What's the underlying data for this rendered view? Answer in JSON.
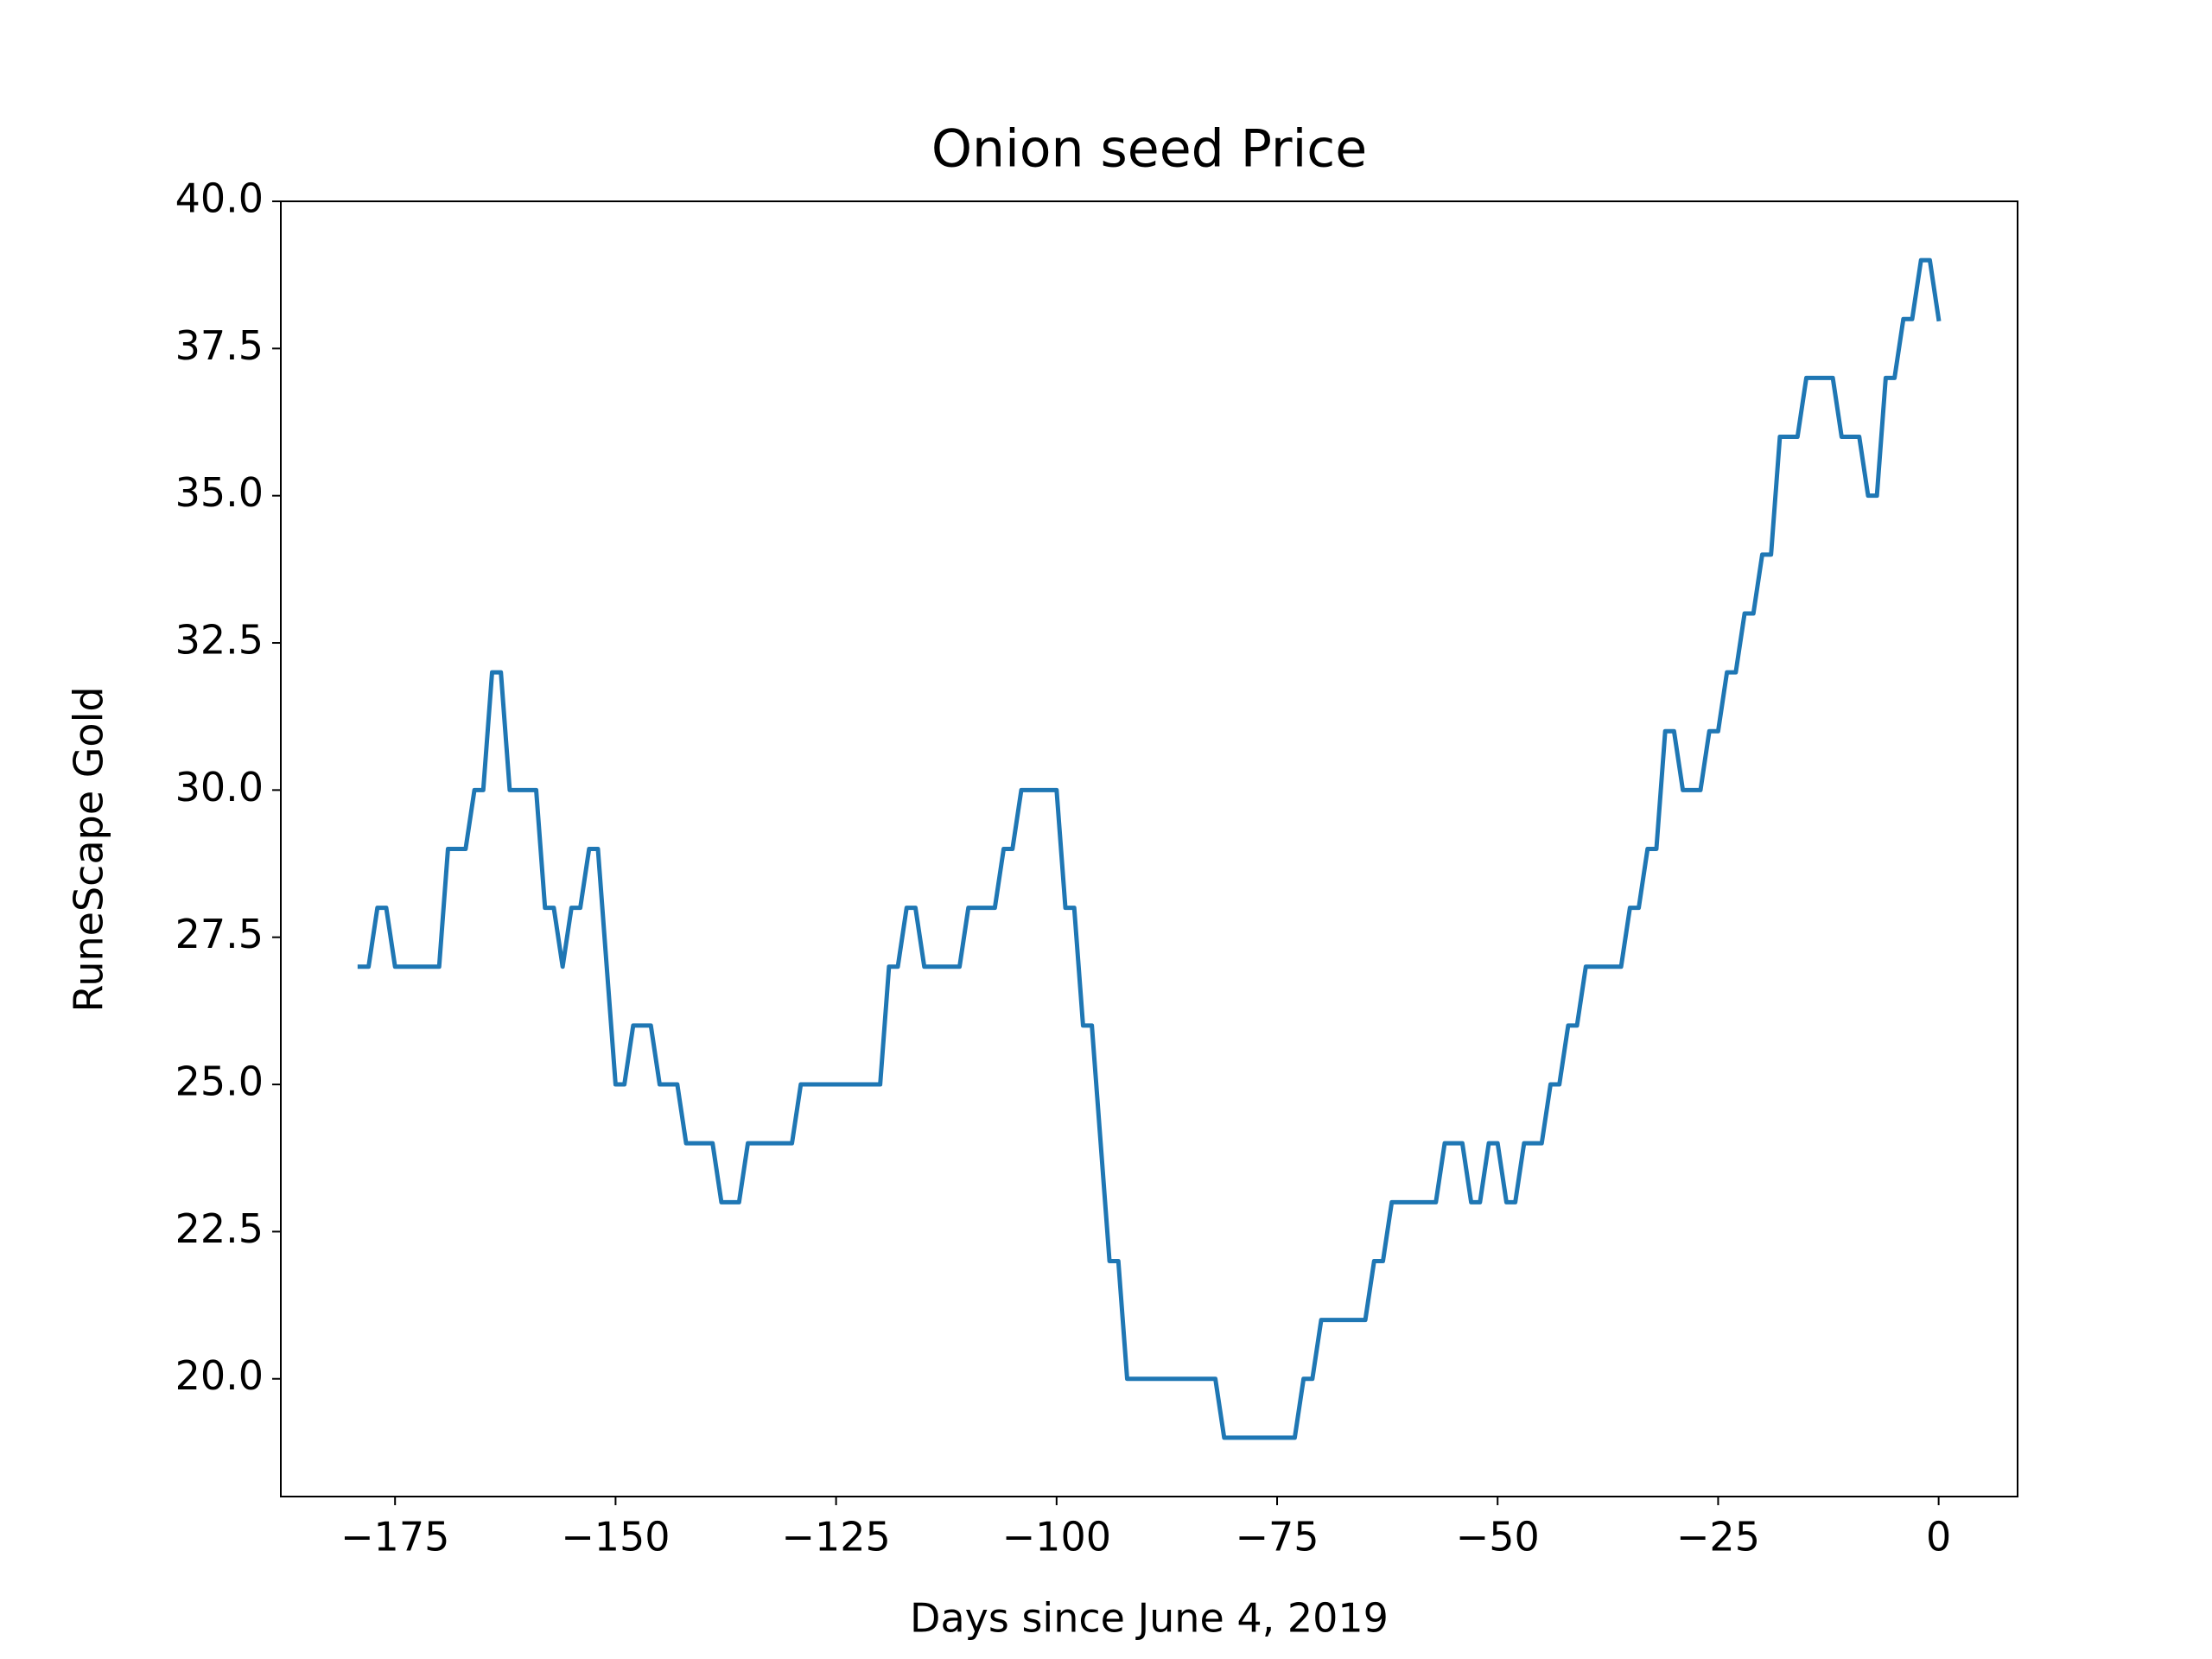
{
  "chart_data": {
    "type": "line",
    "title": "Onion seed Price",
    "xlabel": "Days since June 4, 2019",
    "ylabel": "RuneScape Gold",
    "color": "#1f77b4",
    "x": [
      -179,
      -178,
      -177,
      -176,
      -175,
      -174,
      -173,
      -172,
      -171,
      -170,
      -169,
      -168,
      -167,
      -166,
      -165,
      -164,
      -163,
      -162,
      -161,
      -160,
      -159,
      -158,
      -157,
      -156,
      -155,
      -154,
      -153,
      -152,
      -151,
      -150,
      -149,
      -148,
      -147,
      -146,
      -145,
      -144,
      -143,
      -142,
      -141,
      -140,
      -139,
      -138,
      -137,
      -136,
      -135,
      -134,
      -133,
      -132,
      -131,
      -130,
      -129,
      -128,
      -127,
      -126,
      -125,
      -124,
      -123,
      -122,
      -121,
      -120,
      -119,
      -118,
      -117,
      -116,
      -115,
      -114,
      -113,
      -112,
      -111,
      -110,
      -109,
      -108,
      -107,
      -106,
      -105,
      -104,
      -103,
      -102,
      -101,
      -100,
      -99,
      -98,
      -97,
      -96,
      -95,
      -94,
      -93,
      -92,
      -91,
      -90,
      -89,
      -88,
      -87,
      -86,
      -85,
      -84,
      -83,
      -82,
      -81,
      -80,
      -79,
      -78,
      -77,
      -76,
      -75,
      -74,
      -73,
      -72,
      -71,
      -70,
      -69,
      -68,
      -67,
      -66,
      -65,
      -64,
      -63,
      -62,
      -61,
      -60,
      -59,
      -58,
      -57,
      -56,
      -55,
      -54,
      -53,
      -52,
      -51,
      -50,
      -49,
      -48,
      -47,
      -46,
      -45,
      -44,
      -43,
      -42,
      -41,
      -40,
      -39,
      -38,
      -37,
      -36,
      -35,
      -34,
      -33,
      -32,
      -31,
      -30,
      -29,
      -28,
      -27,
      -26,
      -25,
      -24,
      -23,
      -22,
      -21,
      -20,
      -19,
      -18,
      -17,
      -16,
      -15,
      -14,
      -13,
      -12,
      -11,
      -10,
      -9,
      -8,
      -7,
      -6,
      -5,
      -4,
      -3,
      -2,
      -1,
      0
    ],
    "values": [
      27,
      27,
      28,
      28,
      27,
      27,
      27,
      27,
      27,
      27,
      29,
      29,
      29,
      30,
      30,
      32,
      32,
      30,
      30,
      30,
      30,
      28,
      28,
      27,
      28,
      28,
      29,
      29,
      27,
      25,
      25,
      26,
      26,
      26,
      25,
      25,
      25,
      24,
      24,
      24,
      24,
      23,
      23,
      23,
      24,
      24,
      24,
      24,
      24,
      24,
      25,
      25,
      25,
      25,
      25,
      25,
      25,
      25,
      25,
      25,
      27,
      27,
      28,
      28,
      27,
      27,
      27,
      27,
      27,
      28,
      28,
      28,
      28,
      29,
      29,
      30,
      30,
      30,
      30,
      30,
      28,
      28,
      26,
      26,
      24,
      22,
      22,
      20,
      20,
      20,
      20,
      20,
      20,
      20,
      20,
      20,
      20,
      20,
      19,
      19,
      19,
      19,
      19,
      19,
      19,
      19,
      19,
      20,
      20,
      21,
      21,
      21,
      21,
      21,
      21,
      22,
      22,
      23,
      23,
      23,
      23,
      23,
      23,
      24,
      24,
      24,
      23,
      23,
      24,
      24,
      23,
      23,
      24,
      24,
      24,
      25,
      25,
      26,
      26,
      27,
      27,
      27,
      27,
      27,
      28,
      28,
      29,
      29,
      31,
      31,
      30,
      30,
      30,
      31,
      31,
      32,
      32,
      33,
      33,
      34,
      34,
      36,
      36,
      36,
      37,
      37,
      37,
      37,
      36,
      36,
      36,
      35,
      35,
      37,
      37,
      38,
      38,
      39,
      39,
      38
    ],
    "xlim": [
      -187.95,
      8.95
    ],
    "ylim": [
      18,
      40
    ],
    "xticks": [
      {
        "value": -175,
        "label": "−175"
      },
      {
        "value": -150,
        "label": "−150"
      },
      {
        "value": -125,
        "label": "−125"
      },
      {
        "value": -100,
        "label": "−100"
      },
      {
        "value": -75,
        "label": "−75"
      },
      {
        "value": -50,
        "label": "−50"
      },
      {
        "value": -25,
        "label": "−25"
      },
      0
    ],
    "yticks": [
      {
        "value": 20,
        "label": "20.0"
      },
      22.5,
      {
        "value": 25,
        "label": "25.0"
      },
      27.5,
      {
        "value": 30,
        "label": "30.0"
      },
      32.5,
      {
        "value": 35,
        "label": "35.0"
      },
      37.5,
      {
        "value": 40,
        "label": "40.0"
      }
    ]
  }
}
